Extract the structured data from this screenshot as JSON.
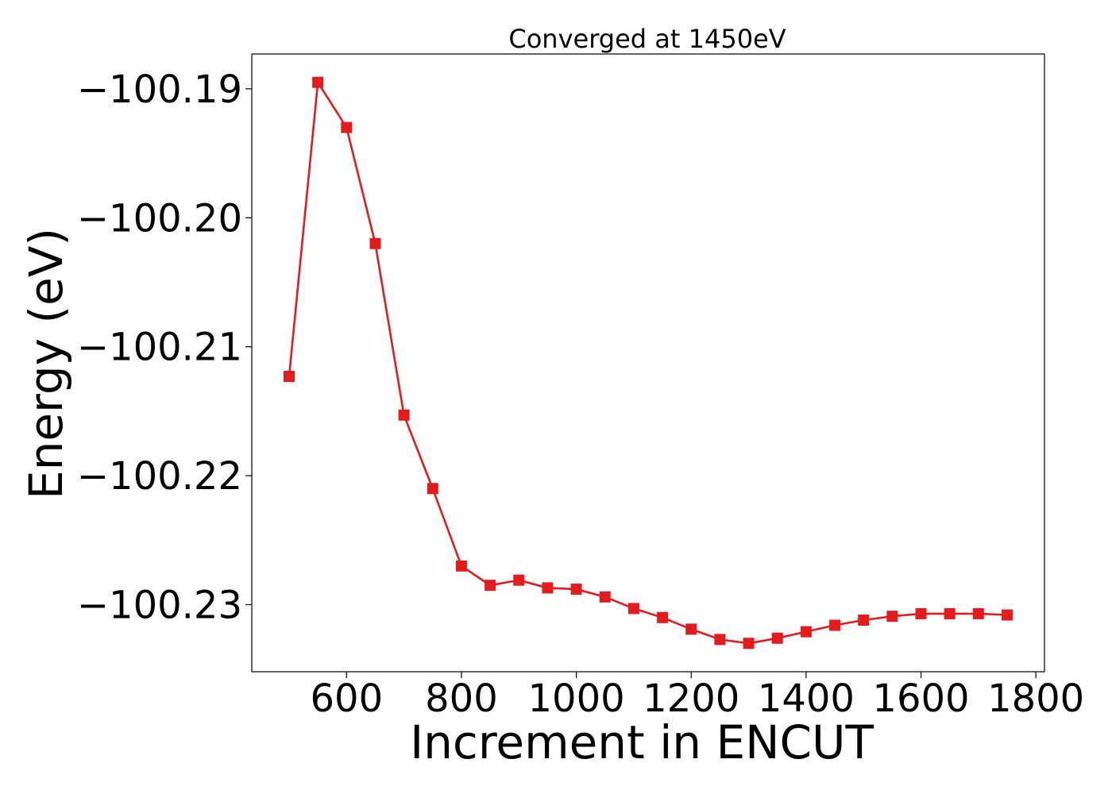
{
  "chart_data": {
    "type": "line",
    "title": "Converged at 1450eV",
    "xlabel": "Increment in ENCUT",
    "ylabel": "Energy (eV)",
    "xlim": [
      435,
      1815
    ],
    "ylim": [
      -100.2352,
      -100.1873
    ],
    "x_ticks": [
      600,
      800,
      1000,
      1200,
      1400,
      1600,
      1800
    ],
    "x_tick_labels": [
      "600",
      "800",
      "1000",
      "1200",
      "1400",
      "1600",
      "1800"
    ],
    "y_ticks": [
      -100.19,
      -100.2,
      -100.21,
      -100.22,
      -100.23
    ],
    "y_tick_labels": [
      "−100.19",
      "−100.20",
      "−100.21",
      "−100.22",
      "−100.23"
    ],
    "grid": false,
    "series": [
      {
        "color": "#e41a1c",
        "marker": "square",
        "x": [
          500,
          550,
          600,
          650,
          700,
          750,
          800,
          850,
          900,
          950,
          1000,
          1050,
          1100,
          1150,
          1200,
          1250,
          1300,
          1350,
          1400,
          1450,
          1500,
          1550,
          1600,
          1650,
          1700,
          1750
        ],
        "y": [
          -100.2123,
          -100.1895,
          -100.193,
          -100.202,
          -100.2153,
          -100.221,
          -100.227,
          -100.2285,
          -100.2281,
          -100.2287,
          -100.2288,
          -100.2294,
          -100.2303,
          -100.231,
          -100.2319,
          -100.2327,
          -100.233,
          -100.2326,
          -100.2321,
          -100.2316,
          -100.2312,
          -100.2309,
          -100.2307,
          -100.2307,
          -100.2307,
          -100.2308
        ]
      }
    ]
  }
}
